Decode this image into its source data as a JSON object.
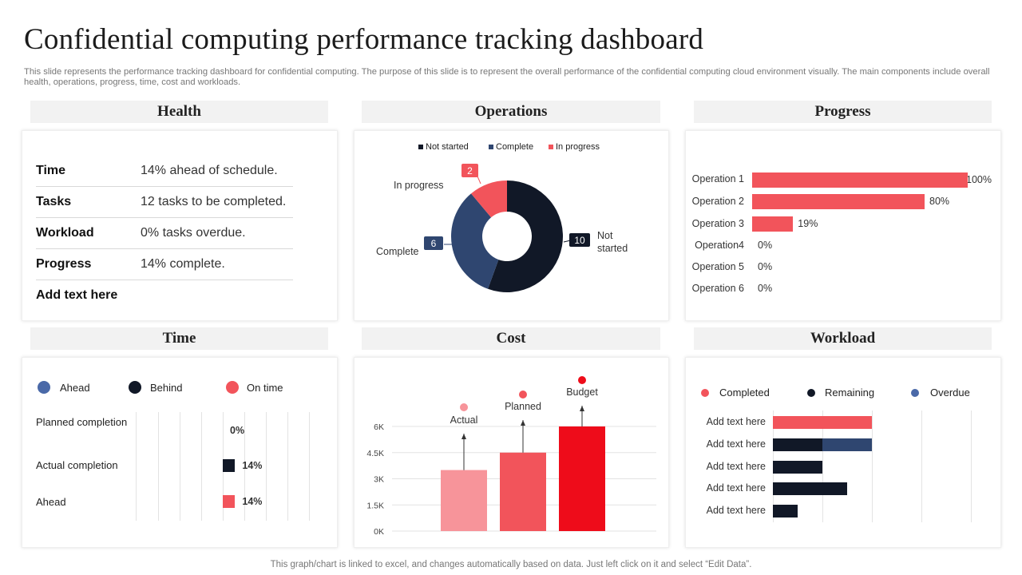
{
  "page": {
    "title": "Confidential computing performance tracking dashboard",
    "subtitle": "This slide represents the performance tracking dashboard for confidential computing. The purpose of this slide is to represent the overall performance of the confidential computing cloud environment visually. The main components include overall health, operations, progress, time, cost and workloads.",
    "footer": "This graph/chart is linked to excel,  and changes automatically based on data. Just left click on it and select “Edit Data”."
  },
  "colors": {
    "dark": "#111827",
    "navy": "#2f4670",
    "coral": "#f2545b",
    "pink": "#f7949a",
    "red": "#ee0c1a",
    "blue_dot": "#4a69a8",
    "panel_head": "#f2f2f2"
  },
  "health": {
    "header": "Health",
    "rows": [
      {
        "key": "Time",
        "value": "14% ahead of schedule."
      },
      {
        "key": "Tasks",
        "value": "12 tasks to be completed."
      },
      {
        "key": "Workload",
        "value": "0% tasks overdue."
      },
      {
        "key": "Progress",
        "value": "14% complete."
      },
      {
        "key": "Add text here",
        "value": ""
      }
    ]
  },
  "operations": {
    "header": "Operations",
    "legend": [
      "Not started",
      "Complete",
      "In progress"
    ],
    "callouts": {
      "not_started_label": "Not started",
      "not_started_value": "10",
      "complete_label": "Complete",
      "complete_value": "6",
      "in_progress_label": "In progress",
      "in_progress_value": "2"
    }
  },
  "progress": {
    "header": "Progress",
    "items": [
      {
        "label": "Operation 1",
        "value_text": "100%"
      },
      {
        "label": "Operation 2",
        "value_text": "80%"
      },
      {
        "label": "Operation 3",
        "value_text": "19%"
      },
      {
        "label": "Operation4",
        "value_text": "0%"
      },
      {
        "label": "Operation 5",
        "value_text": "0%"
      },
      {
        "label": "Operation 6",
        "value_text": "0%"
      }
    ]
  },
  "time": {
    "header": "Time",
    "legend": [
      "Ahead",
      "Behind",
      "On time"
    ],
    "rows": [
      {
        "label": "Planned completion",
        "value_text": "0%"
      },
      {
        "label": "Actual completion",
        "value_text": "14%"
      },
      {
        "label": "Ahead",
        "value_text": "14%"
      }
    ]
  },
  "cost": {
    "header": "Cost",
    "tick_labels": [
      "0K",
      "1.5K",
      "3K",
      "4.5K",
      "6K"
    ],
    "bar_labels": [
      "Actual",
      "Planned",
      "Budget"
    ]
  },
  "workload": {
    "header": "Workload",
    "legend": [
      "Completed",
      "Remaining",
      "Overdue"
    ],
    "row_labels": [
      "Add text here",
      "Add text here",
      "Add text here",
      "Add text here",
      "Add text here"
    ]
  },
  "chart_data": [
    {
      "type": "pie",
      "title": "Operations",
      "categories": [
        "Not started",
        "Complete",
        "In progress"
      ],
      "values": [
        10,
        6,
        2
      ]
    },
    {
      "type": "bar",
      "title": "Progress",
      "categories": [
        "Operation 1",
        "Operation 2",
        "Operation 3",
        "Operation4",
        "Operation 5",
        "Operation 6"
      ],
      "values": [
        100,
        80,
        19,
        0,
        0,
        0
      ],
      "ylim": [
        0,
        100
      ]
    },
    {
      "type": "bar",
      "title": "Time",
      "categories": [
        "Planned completion",
        "Actual completion",
        "Ahead"
      ],
      "values": [
        0,
        14,
        14
      ]
    },
    {
      "type": "bar",
      "title": "Cost",
      "categories": [
        "Actual",
        "Planned",
        "Budget"
      ],
      "values": [
        3500,
        4500,
        6000
      ],
      "ylim": [
        0,
        6000
      ],
      "yticks": [
        0,
        1500,
        3000,
        4500,
        6000
      ]
    },
    {
      "type": "bar",
      "title": "Workload",
      "categories": [
        "Add text here",
        "Add text here",
        "Add text here",
        "Add text here",
        "Add text here"
      ],
      "series": [
        {
          "name": "Completed",
          "values": [
            4,
            0,
            0,
            0,
            0
          ]
        },
        {
          "name": "Remaining",
          "values": [
            0,
            2,
            2,
            3,
            1
          ]
        },
        {
          "name": "Overdue",
          "values": [
            0,
            2,
            0,
            0,
            0
          ]
        }
      ],
      "xlim": [
        0,
        8
      ]
    }
  ]
}
